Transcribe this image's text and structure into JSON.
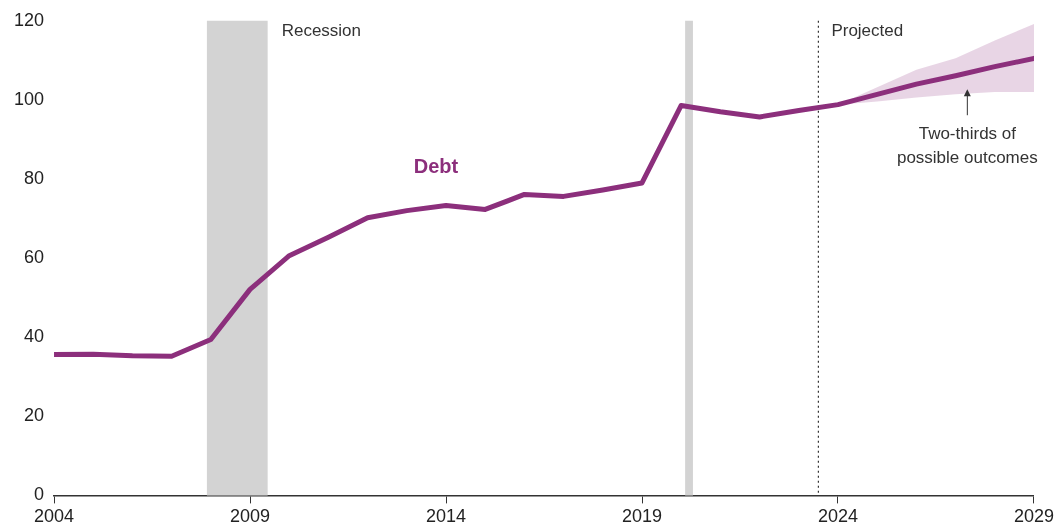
{
  "chart_data": {
    "type": "line",
    "x": [
      2004,
      2005,
      2006,
      2007,
      2008,
      2009,
      2010,
      2011,
      2012,
      2013,
      2014,
      2015,
      2016,
      2017,
      2018,
      2019,
      2020,
      2021,
      2022,
      2023,
      2024,
      2025,
      2026,
      2027,
      2028,
      2029
    ],
    "series": [
      {
        "name": "Debt",
        "color": "#8c2f7c",
        "values": [
          35.6,
          35.7,
          35.3,
          35.2,
          39.4,
          52.1,
          60.6,
          65.3,
          70.2,
          72,
          73.3,
          72.3,
          76.1,
          75.6,
          77.2,
          79,
          98.6,
          97,
          95.7,
          97.3,
          98.8,
          101.4,
          104,
          106.1,
          108.4,
          110.5
        ],
        "lower": [
          null,
          null,
          null,
          null,
          null,
          null,
          null,
          null,
          null,
          null,
          null,
          null,
          null,
          null,
          null,
          null,
          null,
          null,
          null,
          null,
          98.8,
          99.6,
          100.6,
          101.4,
          102,
          102
        ],
        "upper": [
          null,
          null,
          null,
          null,
          null,
          null,
          null,
          null,
          null,
          null,
          null,
          null,
          null,
          null,
          null,
          null,
          null,
          null,
          null,
          null,
          98.8,
          103.2,
          107.6,
          110.5,
          115,
          119.2
        ]
      }
    ],
    "xlim": [
      2004,
      2029
    ],
    "xticks": [
      2004,
      2009,
      2014,
      2019,
      2024,
      2029
    ],
    "ylim": [
      0,
      120
    ],
    "yticks": [
      0,
      20,
      40,
      60,
      80,
      100,
      120
    ],
    "grid": false,
    "legend": false,
    "marker": "none",
    "line_style": "solid",
    "bands": [
      {
        "axis": "x",
        "from": 2007.9,
        "to": 2009.45,
        "label": "Recession",
        "color": "#d3d3d3"
      },
      {
        "axis": "x",
        "from": 2020.1,
        "to": 2020.3,
        "color": "#d3d3d3"
      }
    ],
    "ref_lines": [
      {
        "axis": "x",
        "value": 2023.5,
        "label": "Projected",
        "color": "#333333",
        "line_style": "dotted"
      }
    ],
    "annotations": [
      {
        "text": "Two-thirds of possible outcomes",
        "x": 2027.3,
        "y": 102.7
      }
    ]
  }
}
